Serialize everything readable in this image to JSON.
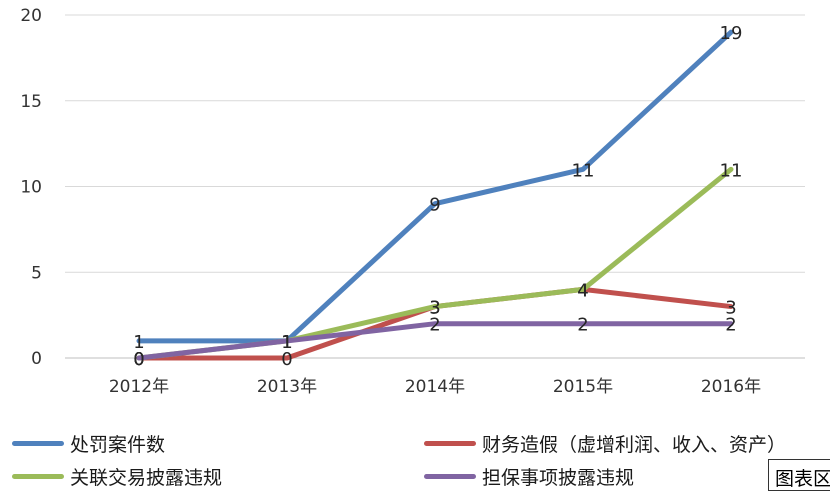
{
  "chart_data": {
    "type": "line",
    "categories": [
      "2012年",
      "2013年",
      "2014年",
      "2015年",
      "2016年"
    ],
    "ylim": [
      0,
      20
    ],
    "yticks": [
      0,
      5,
      10,
      15,
      20
    ],
    "grid": true,
    "legend_position": "bottom",
    "series": [
      {
        "name": "处罚案件数",
        "values": [
          1,
          1,
          9,
          11,
          19
        ],
        "color": "#4f81bd"
      },
      {
        "name": "财务造假（虚增利润、收入、资产）",
        "values": [
          0,
          0,
          3,
          4,
          3
        ],
        "color": "#c0504d"
      },
      {
        "name": "关联交易披露违规",
        "values": [
          0,
          1,
          3,
          4,
          11
        ],
        "color": "#9bbb59"
      },
      {
        "name": "担保事项披露违规",
        "values": [
          0,
          1,
          2,
          2,
          2
        ],
        "color": "#8064a2"
      }
    ]
  },
  "corner_tag": "图表区"
}
